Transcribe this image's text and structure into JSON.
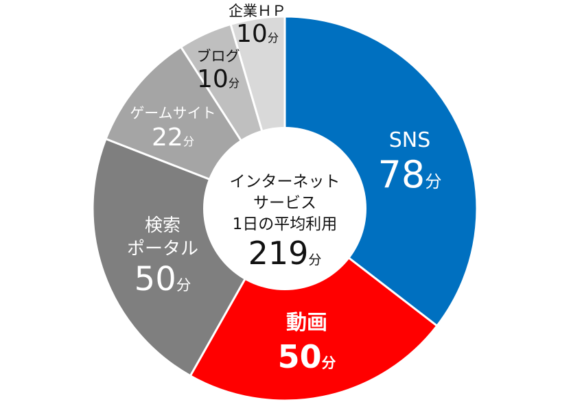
{
  "chart_data": {
    "type": "pie",
    "variant": "donut",
    "title": "インターネットサービス 1日の平均利用",
    "center_label": {
      "lines": [
        "インターネット",
        "サービス",
        "1日の平均利用"
      ],
      "total_value": "219",
      "total_unit": "分"
    },
    "unit": "分",
    "start_angle_deg": 0,
    "direction": "clockwise",
    "categories": [
      "SNS",
      "動画",
      "検索ポータル",
      "ゲームサイト",
      "ブログ",
      "企業HP"
    ],
    "values": [
      78,
      50,
      50,
      22,
      10,
      10
    ],
    "slices": [
      {
        "label": "SNS",
        "label_lines": [
          "SNS"
        ],
        "value": 78,
        "color": "#0070C0",
        "text_color": "#ffffff",
        "bold": false
      },
      {
        "label": "動画",
        "label_lines": [
          "動画"
        ],
        "value": 50,
        "color": "#FF0000",
        "text_color": "#ffffff",
        "bold": true
      },
      {
        "label": "検索ポータル",
        "label_lines": [
          "検索",
          "ポータル"
        ],
        "value": 50,
        "color": "#7F7F7F",
        "text_color": "#ffffff",
        "bold": false
      },
      {
        "label": "ゲームサイト",
        "label_lines": [
          "ゲームサイト"
        ],
        "value": 22,
        "color": "#A5A5A5",
        "text_color": "#ffffff",
        "bold": false
      },
      {
        "label": "ブログ",
        "label_lines": [
          "ブログ"
        ],
        "value": 10,
        "color": "#BFBFBF",
        "text_color": "#111111",
        "bold": false
      },
      {
        "label": "企業ＨＰ",
        "label_lines": [
          "企業ＨＰ"
        ],
        "value": 10,
        "color": "#D9D9D9",
        "text_color": "#111111",
        "bold": false
      }
    ],
    "legend": null,
    "grid": false
  }
}
